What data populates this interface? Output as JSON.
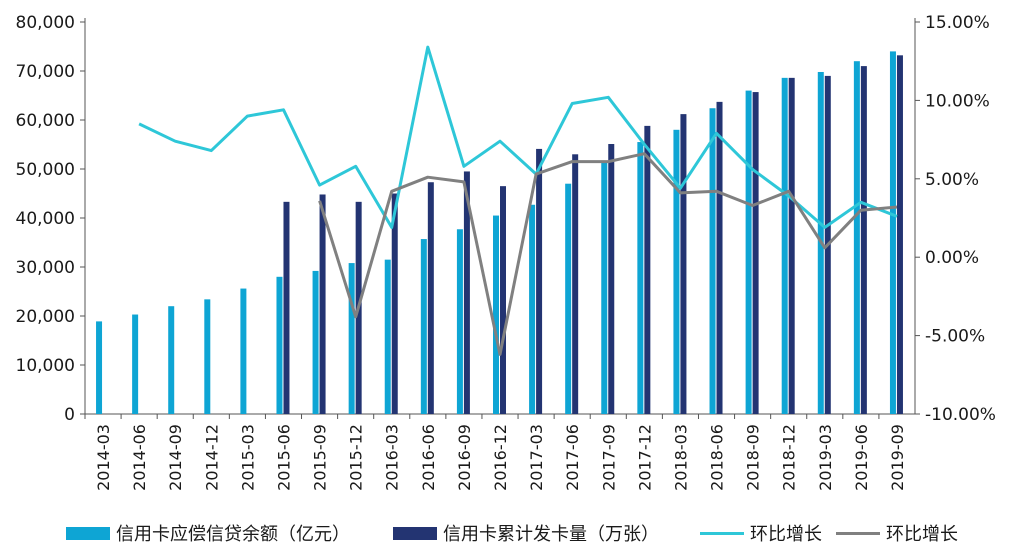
{
  "chart_data": {
    "type": "bar",
    "categories": [
      "2014-03",
      "2014-06",
      "2014-09",
      "2014-12",
      "2015-03",
      "2015-06",
      "2015-09",
      "2015-12",
      "2016-03",
      "2016-06",
      "2016-09",
      "2016-12",
      "2017-03",
      "2017-06",
      "2017-09",
      "2017-12",
      "2018-03",
      "2018-06",
      "2018-09",
      "2018-12",
      "2019-03",
      "2019-06",
      "2019-09"
    ],
    "series": [
      {
        "name": "信用卡应偿信贷余额（亿元）",
        "type": "bar",
        "axis": "left",
        "color": "#0ea5d4",
        "values": [
          18900,
          20300,
          22000,
          23400,
          25600,
          28000,
          29200,
          30800,
          31500,
          35700,
          37700,
          40500,
          42700,
          47000,
          51500,
          55500,
          58000,
          62400,
          66000,
          68600,
          69800,
          72000,
          74000
        ]
      },
      {
        "name": "信用卡累计发卡量（万张）",
        "type": "bar",
        "axis": "left",
        "color": "#233472",
        "values": [
          null,
          null,
          null,
          null,
          null,
          43300,
          44800,
          43300,
          45000,
          47300,
          49500,
          46500,
          54100,
          53000,
          55100,
          58800,
          61200,
          63700,
          65700,
          68600,
          69000,
          71000,
          73200
        ]
      },
      {
        "name": "环比增长",
        "type": "line",
        "axis": "right",
        "color": "#2ec7d8",
        "values": [
          null,
          8.5,
          7.4,
          6.8,
          9.0,
          9.4,
          4.6,
          5.8,
          1.9,
          13.4,
          5.8,
          7.4,
          5.3,
          9.8,
          10.2,
          7.2,
          4.4,
          7.9,
          5.6,
          3.9,
          1.9,
          3.5,
          2.6
        ]
      },
      {
        "name": "环比增长",
        "type": "line",
        "axis": "right",
        "color": "#808080",
        "values": [
          null,
          null,
          null,
          null,
          null,
          null,
          3.6,
          -3.8,
          4.2,
          5.1,
          4.8,
          -6.2,
          5.3,
          6.1,
          6.1,
          6.6,
          4.1,
          4.2,
          3.3,
          4.2,
          0.6,
          3.0,
          3.2
        ]
      }
    ],
    "yleft": {
      "min": 0,
      "max": 80000,
      "ticks": [
        "0",
        "10,000",
        "20,000",
        "30,000",
        "40,000",
        "50,000",
        "60,000",
        "70,000",
        "80,000"
      ]
    },
    "yright": {
      "min": -10,
      "max": 15,
      "ticks": [
        "-10.00%",
        "-5.00%",
        "0.00%",
        "5.00%",
        "10.00%",
        "15.00%"
      ]
    },
    "grid": false,
    "legend_position": "bottom"
  },
  "legend": [
    {
      "label": "信用卡应偿信贷余额（亿元）",
      "color": "#0ea5d4",
      "kind": "bar"
    },
    {
      "label": "信用卡累计发卡量（万张）",
      "color": "#233472",
      "kind": "bar"
    },
    {
      "label": "环比增长",
      "color": "#2ec7d8",
      "kind": "line"
    },
    {
      "label": "环比增长",
      "color": "#808080",
      "kind": "line"
    }
  ]
}
